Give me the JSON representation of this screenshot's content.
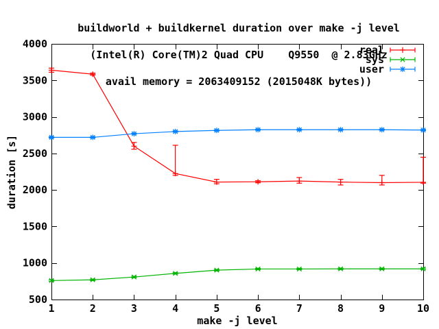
{
  "chart_data": {
    "type": "line",
    "title": "buildworld + buildkernel duration over make -j level",
    "subtitle_cpu": "(Intel(R) Core(TM)2 Quad CPU    Q9550  @ 2.83GHz",
    "subtitle_memory": "avail memory = 2063409152 (2015048K bytes))",
    "xlabel": "make -j level",
    "ylabel": "duration [s]",
    "xlim": [
      1,
      10
    ],
    "ylim": [
      500,
      4000
    ],
    "xticks": [
      1,
      2,
      3,
      4,
      5,
      6,
      7,
      8,
      9,
      10
    ],
    "yticks": [
      500,
      1000,
      1500,
      2000,
      2500,
      3000,
      3500,
      4000
    ],
    "grid": false,
    "legend_position": "top-right-inside",
    "background_color": "#ffffff",
    "axis_color": "#000000",
    "x": [
      1,
      2,
      3,
      4,
      5,
      6,
      7,
      8,
      9,
      10
    ],
    "series": [
      {
        "name": "real",
        "color": "#ff0000",
        "marker": "plus",
        "style": "yerrorlines",
        "values": [
          3640,
          3585,
          2600,
          2225,
          2108,
          2112,
          2122,
          2108,
          2100,
          2105
        ],
        "err_low": [
          3612,
          3570,
          2558,
          2200,
          2085,
          2098,
          2093,
          2068,
          2068,
          2093
        ],
        "err_high": [
          3668,
          3600,
          2650,
          2612,
          2145,
          2126,
          2170,
          2145,
          2200,
          2448
        ]
      },
      {
        "name": "sys",
        "color": "#00b400",
        "marker": "cross",
        "style": "yerrorlines",
        "values": [
          760,
          770,
          808,
          858,
          902,
          918,
          918,
          920,
          920,
          920
        ],
        "err_low": [
          750,
          760,
          798,
          848,
          892,
          908,
          908,
          910,
          910,
          910
        ],
        "err_high": [
          770,
          780,
          818,
          868,
          912,
          928,
          928,
          930,
          930,
          930
        ]
      },
      {
        "name": "user",
        "color": "#0080ff",
        "marker": "asterisk",
        "style": "yerrorlines",
        "values": [
          2720,
          2720,
          2770,
          2800,
          2815,
          2825,
          2825,
          2825,
          2825,
          2820
        ],
        "err_low": [
          2712,
          2712,
          2762,
          2792,
          2807,
          2817,
          2817,
          2817,
          2817,
          2812
        ],
        "err_high": [
          2728,
          2728,
          2778,
          2808,
          2823,
          2833,
          2833,
          2833,
          2833,
          2828
        ]
      }
    ]
  }
}
